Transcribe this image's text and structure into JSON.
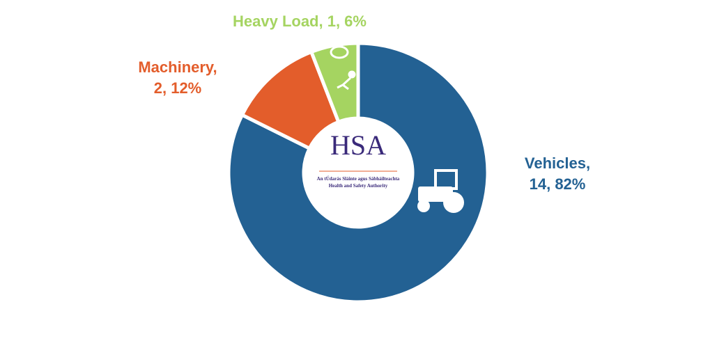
{
  "chart_data": {
    "type": "donut",
    "categories": [
      "Vehicles",
      "Machinery",
      "Heavy Load"
    ],
    "values": [
      14,
      2,
      1
    ],
    "value_labels": [
      "Vehicles, 14, 82%",
      "Machinery, 2, 12%",
      "Heavy Load, 1, 6%"
    ],
    "colors": [
      "#236193",
      "#e35d2b",
      "#a5d461"
    ]
  },
  "logo": {
    "name": "HSA",
    "line1": "An tÚdarás Sláinte agus Sábháilteachta",
    "line2": "Health and Safety Authority"
  }
}
